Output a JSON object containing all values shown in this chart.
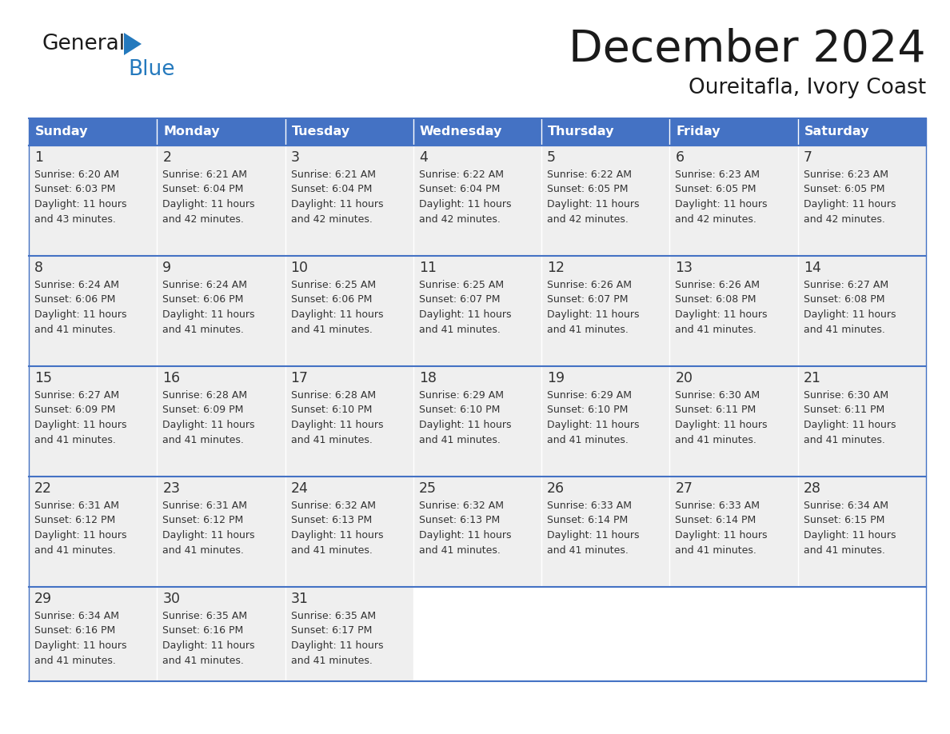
{
  "title": "December 2024",
  "subtitle": "Oureitafla, Ivory Coast",
  "header_color": "#4472C4",
  "header_text_color": "#FFFFFF",
  "days_of_week": [
    "Sunday",
    "Monday",
    "Tuesday",
    "Wednesday",
    "Thursday",
    "Friday",
    "Saturday"
  ],
  "bg_color": "#FFFFFF",
  "cell_bg_color": "#EFEFEF",
  "line_color": "#4472C4",
  "text_color": "#333333",
  "logo_black": "#1a1a1a",
  "logo_blue": "#2479BD",
  "triangle_color": "#2479BD",
  "calendar": [
    [
      {
        "day": 1,
        "sunrise": "6:20 AM",
        "sunset": "6:03 PM",
        "daylight": "11 hours",
        "daylight2": "and 43 minutes."
      },
      {
        "day": 2,
        "sunrise": "6:21 AM",
        "sunset": "6:04 PM",
        "daylight": "11 hours",
        "daylight2": "and 42 minutes."
      },
      {
        "day": 3,
        "sunrise": "6:21 AM",
        "sunset": "6:04 PM",
        "daylight": "11 hours",
        "daylight2": "and 42 minutes."
      },
      {
        "day": 4,
        "sunrise": "6:22 AM",
        "sunset": "6:04 PM",
        "daylight": "11 hours",
        "daylight2": "and 42 minutes."
      },
      {
        "day": 5,
        "sunrise": "6:22 AM",
        "sunset": "6:05 PM",
        "daylight": "11 hours",
        "daylight2": "and 42 minutes."
      },
      {
        "day": 6,
        "sunrise": "6:23 AM",
        "sunset": "6:05 PM",
        "daylight": "11 hours",
        "daylight2": "and 42 minutes."
      },
      {
        "day": 7,
        "sunrise": "6:23 AM",
        "sunset": "6:05 PM",
        "daylight": "11 hours",
        "daylight2": "and 42 minutes."
      }
    ],
    [
      {
        "day": 8,
        "sunrise": "6:24 AM",
        "sunset": "6:06 PM",
        "daylight": "11 hours",
        "daylight2": "and 41 minutes."
      },
      {
        "day": 9,
        "sunrise": "6:24 AM",
        "sunset": "6:06 PM",
        "daylight": "11 hours",
        "daylight2": "and 41 minutes."
      },
      {
        "day": 10,
        "sunrise": "6:25 AM",
        "sunset": "6:06 PM",
        "daylight": "11 hours",
        "daylight2": "and 41 minutes."
      },
      {
        "day": 11,
        "sunrise": "6:25 AM",
        "sunset": "6:07 PM",
        "daylight": "11 hours",
        "daylight2": "and 41 minutes."
      },
      {
        "day": 12,
        "sunrise": "6:26 AM",
        "sunset": "6:07 PM",
        "daylight": "11 hours",
        "daylight2": "and 41 minutes."
      },
      {
        "day": 13,
        "sunrise": "6:26 AM",
        "sunset": "6:08 PM",
        "daylight": "11 hours",
        "daylight2": "and 41 minutes."
      },
      {
        "day": 14,
        "sunrise": "6:27 AM",
        "sunset": "6:08 PM",
        "daylight": "11 hours",
        "daylight2": "and 41 minutes."
      }
    ],
    [
      {
        "day": 15,
        "sunrise": "6:27 AM",
        "sunset": "6:09 PM",
        "daylight": "11 hours",
        "daylight2": "and 41 minutes."
      },
      {
        "day": 16,
        "sunrise": "6:28 AM",
        "sunset": "6:09 PM",
        "daylight": "11 hours",
        "daylight2": "and 41 minutes."
      },
      {
        "day": 17,
        "sunrise": "6:28 AM",
        "sunset": "6:10 PM",
        "daylight": "11 hours",
        "daylight2": "and 41 minutes."
      },
      {
        "day": 18,
        "sunrise": "6:29 AM",
        "sunset": "6:10 PM",
        "daylight": "11 hours",
        "daylight2": "and 41 minutes."
      },
      {
        "day": 19,
        "sunrise": "6:29 AM",
        "sunset": "6:10 PM",
        "daylight": "11 hours",
        "daylight2": "and 41 minutes."
      },
      {
        "day": 20,
        "sunrise": "6:30 AM",
        "sunset": "6:11 PM",
        "daylight": "11 hours",
        "daylight2": "and 41 minutes."
      },
      {
        "day": 21,
        "sunrise": "6:30 AM",
        "sunset": "6:11 PM",
        "daylight": "11 hours",
        "daylight2": "and 41 minutes."
      }
    ],
    [
      {
        "day": 22,
        "sunrise": "6:31 AM",
        "sunset": "6:12 PM",
        "daylight": "11 hours",
        "daylight2": "and 41 minutes."
      },
      {
        "day": 23,
        "sunrise": "6:31 AM",
        "sunset": "6:12 PM",
        "daylight": "11 hours",
        "daylight2": "and 41 minutes."
      },
      {
        "day": 24,
        "sunrise": "6:32 AM",
        "sunset": "6:13 PM",
        "daylight": "11 hours",
        "daylight2": "and 41 minutes."
      },
      {
        "day": 25,
        "sunrise": "6:32 AM",
        "sunset": "6:13 PM",
        "daylight": "11 hours",
        "daylight2": "and 41 minutes."
      },
      {
        "day": 26,
        "sunrise": "6:33 AM",
        "sunset": "6:14 PM",
        "daylight": "11 hours",
        "daylight2": "and 41 minutes."
      },
      {
        "day": 27,
        "sunrise": "6:33 AM",
        "sunset": "6:14 PM",
        "daylight": "11 hours",
        "daylight2": "and 41 minutes."
      },
      {
        "day": 28,
        "sunrise": "6:34 AM",
        "sunset": "6:15 PM",
        "daylight": "11 hours",
        "daylight2": "and 41 minutes."
      }
    ],
    [
      {
        "day": 29,
        "sunrise": "6:34 AM",
        "sunset": "6:16 PM",
        "daylight": "11 hours",
        "daylight2": "and 41 minutes."
      },
      {
        "day": 30,
        "sunrise": "6:35 AM",
        "sunset": "6:16 PM",
        "daylight": "11 hours",
        "daylight2": "and 41 minutes."
      },
      {
        "day": 31,
        "sunrise": "6:35 AM",
        "sunset": "6:17 PM",
        "daylight": "11 hours",
        "daylight2": "and 41 minutes."
      },
      null,
      null,
      null,
      null
    ]
  ]
}
